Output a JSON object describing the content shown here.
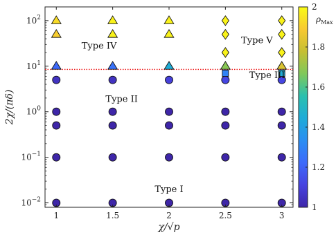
{
  "chart_data": {
    "type": "scatter",
    "xlabel": "χ/√p",
    "ylabel": "2χ/(πδ)",
    "xlim": [
      0.9,
      3.1
    ],
    "ylim": [
      0.008,
      200
    ],
    "y_scale": "log",
    "grid": false,
    "x_ticks": [
      {
        "value": 1,
        "label": "1"
      },
      {
        "value": 1.5,
        "label": "1.5"
      },
      {
        "value": 2,
        "label": "2"
      },
      {
        "value": 2.5,
        "label": "2.5"
      },
      {
        "value": 3,
        "label": "3"
      }
    ],
    "y_ticks": [
      {
        "value": 0.01,
        "base": "10",
        "exp": "−2"
      },
      {
        "value": 0.1,
        "base": "10",
        "exp": "−1"
      },
      {
        "value": 1,
        "base": "10",
        "exp": "0"
      },
      {
        "value": 10,
        "base": "10",
        "exp": "1"
      },
      {
        "value": 100,
        "base": "10",
        "exp": "2"
      }
    ],
    "threshold_line": {
      "y": 8.5,
      "color": "#ee1111",
      "style": "dotted"
    },
    "regions": [
      {
        "label": "Type I",
        "x": 2.0,
        "y": 0.02
      },
      {
        "label": "Type II",
        "x": 1.58,
        "y": 1.9
      },
      {
        "label": "Type III",
        "x": 2.87,
        "y": 6.3
      },
      {
        "label": "Type IV",
        "x": 1.38,
        "y": 28
      },
      {
        "label": "Type V",
        "x": 2.78,
        "y": 37
      }
    ],
    "colorbar": {
      "label": "ρ",
      "label_sub": "Max",
      "min": 1,
      "max": 2,
      "ticks": [
        {
          "value": 1,
          "label": "1"
        },
        {
          "value": 1.2,
          "label": "1.2"
        },
        {
          "value": 1.4,
          "label": "1.4"
        },
        {
          "value": 1.6,
          "label": "1.6"
        },
        {
          "value": 1.8,
          "label": "1.8"
        },
        {
          "value": 2,
          "label": "2"
        }
      ],
      "colormap": [
        "#3e26a8",
        "#4743e0",
        "#3d6afb",
        "#2b8ef2",
        "#1eabd8",
        "#2ac0ae",
        "#7fc85a",
        "#c6bf33",
        "#f8c932",
        "#f9fb15"
      ]
    },
    "points": [
      {
        "x": 1,
        "y": 0.01,
        "marker": "circle",
        "rho": 1.0
      },
      {
        "x": 1,
        "y": 0.1,
        "marker": "circle",
        "rho": 1.0
      },
      {
        "x": 1,
        "y": 0.5,
        "marker": "circle",
        "rho": 1.0
      },
      {
        "x": 1,
        "y": 1,
        "marker": "circle",
        "rho": 1.0
      },
      {
        "x": 1,
        "y": 5,
        "marker": "circle",
        "rho": 1.05
      },
      {
        "x": 1,
        "y": 10,
        "marker": "triangle",
        "rho": 1.22
      },
      {
        "x": 1,
        "y": 50,
        "marker": "triangle",
        "rho": 1.9
      },
      {
        "x": 1,
        "y": 100,
        "marker": "triangle",
        "rho": 1.93
      },
      {
        "x": 1.5,
        "y": 0.01,
        "marker": "circle",
        "rho": 1.0
      },
      {
        "x": 1.5,
        "y": 0.1,
        "marker": "circle",
        "rho": 1.0
      },
      {
        "x": 1.5,
        "y": 0.5,
        "marker": "circle",
        "rho": 1.0
      },
      {
        "x": 1.5,
        "y": 1,
        "marker": "circle",
        "rho": 1.0
      },
      {
        "x": 1.5,
        "y": 5,
        "marker": "circle",
        "rho": 1.05
      },
      {
        "x": 1.5,
        "y": 10,
        "marker": "triangle",
        "rho": 1.25
      },
      {
        "x": 1.5,
        "y": 50,
        "marker": "triangle",
        "rho": 1.98
      },
      {
        "x": 1.5,
        "y": 100,
        "marker": "triangle",
        "rho": 1.98
      },
      {
        "x": 2,
        "y": 0.01,
        "marker": "circle",
        "rho": 1.0
      },
      {
        "x": 2,
        "y": 0.1,
        "marker": "circle",
        "rho": 1.0
      },
      {
        "x": 2,
        "y": 0.5,
        "marker": "circle",
        "rho": 1.0
      },
      {
        "x": 2,
        "y": 1,
        "marker": "circle",
        "rho": 1.0
      },
      {
        "x": 2,
        "y": 5,
        "marker": "circle",
        "rho": 1.1
      },
      {
        "x": 2,
        "y": 10,
        "marker": "triangle",
        "rho": 1.45
      },
      {
        "x": 2,
        "y": 50,
        "marker": "triangle",
        "rho": 1.98
      },
      {
        "x": 2,
        "y": 100,
        "marker": "triangle",
        "rho": 1.98
      },
      {
        "x": 2.5,
        "y": 0.01,
        "marker": "circle",
        "rho": 1.0
      },
      {
        "x": 2.5,
        "y": 0.1,
        "marker": "circle",
        "rho": 1.0
      },
      {
        "x": 2.5,
        "y": 0.5,
        "marker": "circle",
        "rho": 1.0
      },
      {
        "x": 2.5,
        "y": 1,
        "marker": "circle",
        "rho": 1.0
      },
      {
        "x": 2.5,
        "y": 5,
        "marker": "circle",
        "rho": 1.12
      },
      {
        "x": 2.5,
        "y": 7,
        "marker": "square",
        "rho": 1.3
      },
      {
        "x": 2.5,
        "y": 10,
        "marker": "triangle",
        "rho": 1.68
      },
      {
        "x": 2.5,
        "y": 20,
        "marker": "diamond",
        "rho": 1.98
      },
      {
        "x": 2.5,
        "y": 50,
        "marker": "diamond",
        "rho": 1.98
      },
      {
        "x": 2.5,
        "y": 100,
        "marker": "diamond",
        "rho": 1.98
      },
      {
        "x": 3,
        "y": 0.01,
        "marker": "circle",
        "rho": 1.0
      },
      {
        "x": 3,
        "y": 0.1,
        "marker": "circle",
        "rho": 1.0
      },
      {
        "x": 3,
        "y": 0.5,
        "marker": "circle",
        "rho": 1.0
      },
      {
        "x": 3,
        "y": 1,
        "marker": "circle",
        "rho": 1.0
      },
      {
        "x": 3,
        "y": 5,
        "marker": "circle",
        "rho": 1.12
      },
      {
        "x": 3,
        "y": 7,
        "marker": "square",
        "rho": 1.45
      },
      {
        "x": 3,
        "y": 10,
        "marker": "triangle",
        "rho": 1.82
      },
      {
        "x": 3,
        "y": 20,
        "marker": "diamond",
        "rho": 1.98
      },
      {
        "x": 3,
        "y": 50,
        "marker": "diamond",
        "rho": 1.98
      },
      {
        "x": 3,
        "y": 100,
        "marker": "diamond",
        "rho": 1.98
      }
    ]
  }
}
